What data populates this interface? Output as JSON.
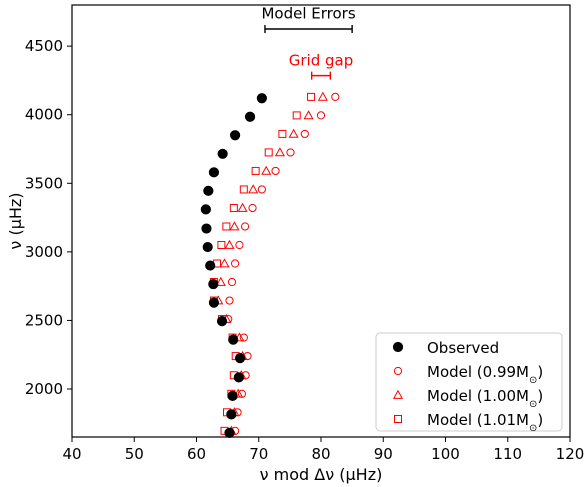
{
  "chart_data": {
    "type": "scatter",
    "xlabel": "ν mod Δν (μHz)",
    "ylabel": "ν (μHz)",
    "xlim": [
      40,
      120
    ],
    "ylim": [
      1650,
      4800
    ],
    "xticks": [
      40,
      50,
      60,
      70,
      80,
      90,
      100,
      110,
      120
    ],
    "yticks": [
      2000,
      2500,
      3000,
      3500,
      4000,
      4500
    ],
    "ytick_labels": [
      "2000",
      "2500",
      "3000",
      "3500",
      "4000",
      "4500"
    ],
    "xtick_labels": [
      "40",
      "50",
      "60",
      "70",
      "80",
      "90",
      "100",
      "110",
      "120"
    ],
    "grid": false,
    "legend_position": "bottom-right",
    "series": [
      {
        "name": "Observed",
        "marker": "filled-circle",
        "color": "#000000",
        "points": [
          [
            70.5,
            4120
          ],
          [
            68.6,
            3985
          ],
          [
            66.2,
            3850
          ],
          [
            64.2,
            3715
          ],
          [
            62.8,
            3580
          ],
          [
            61.9,
            3445
          ],
          [
            61.5,
            3310
          ],
          [
            61.6,
            3170
          ],
          [
            61.8,
            3035
          ],
          [
            62.2,
            2900
          ],
          [
            62.7,
            2765
          ],
          [
            62.8,
            2630
          ],
          [
            64.1,
            2495
          ],
          [
            65.9,
            2360
          ],
          [
            67.0,
            2225
          ],
          [
            66.8,
            2085
          ],
          [
            65.8,
            1950
          ],
          [
            65.6,
            1815
          ],
          [
            65.3,
            1680
          ]
        ]
      },
      {
        "name": "Model (0.99M",
        "marker": "open-circle",
        "color": "#ff0000",
        "points": [
          [
            82.3,
            4130
          ],
          [
            80.0,
            3995
          ],
          [
            77.4,
            3860
          ],
          [
            75.1,
            3725
          ],
          [
            72.7,
            3590
          ],
          [
            70.5,
            3455
          ],
          [
            69.0,
            3320
          ],
          [
            67.8,
            3185
          ],
          [
            66.9,
            3050
          ],
          [
            66.2,
            2915
          ],
          [
            65.7,
            2780
          ],
          [
            65.3,
            2645
          ],
          [
            65.1,
            2510
          ],
          [
            67.6,
            2375
          ],
          [
            68.2,
            2240
          ],
          [
            67.9,
            2100
          ],
          [
            67.3,
            1965
          ],
          [
            66.6,
            1830
          ],
          [
            66.2,
            1695
          ]
        ]
      },
      {
        "name": "Model (1.00M",
        "marker": "open-triangle",
        "color": "#ff0000",
        "points": [
          [
            80.3,
            4130
          ],
          [
            78.0,
            3995
          ],
          [
            75.6,
            3860
          ],
          [
            73.4,
            3725
          ],
          [
            71.2,
            3590
          ],
          [
            69.1,
            3455
          ],
          [
            67.4,
            3320
          ],
          [
            66.1,
            3185
          ],
          [
            65.3,
            3050
          ],
          [
            64.5,
            2915
          ],
          [
            63.9,
            2780
          ],
          [
            63.5,
            2645
          ],
          [
            64.8,
            2510
          ],
          [
            66.9,
            2375
          ],
          [
            67.4,
            2240
          ],
          [
            67.2,
            2100
          ],
          [
            66.7,
            1965
          ],
          [
            66.1,
            1830
          ],
          [
            65.6,
            1695
          ]
        ]
      },
      {
        "name": "Model (1.01M",
        "marker": "open-square",
        "color": "#ff0000",
        "points": [
          [
            78.4,
            4130
          ],
          [
            76.1,
            3995
          ],
          [
            73.8,
            3860
          ],
          [
            71.6,
            3725
          ],
          [
            69.5,
            3590
          ],
          [
            67.6,
            3455
          ],
          [
            66.0,
            3320
          ],
          [
            64.8,
            3185
          ],
          [
            64.0,
            3050
          ],
          [
            63.3,
            2915
          ],
          [
            62.8,
            2780
          ],
          [
            62.8,
            2645
          ],
          [
            64.1,
            2510
          ],
          [
            65.8,
            2375
          ],
          [
            66.3,
            2240
          ],
          [
            66.0,
            2100
          ],
          [
            65.6,
            1965
          ],
          [
            64.9,
            1830
          ],
          [
            64.5,
            1695
          ]
        ]
      }
    ],
    "legend_sub": "⊙",
    "legend_tail": ")",
    "annotations": [
      {
        "text": "Model Errors",
        "color": "#000000",
        "bar_x": [
          71,
          85
        ],
        "y": 4625,
        "text_y": 4700
      },
      {
        "text": "Grid gap",
        "color": "#ff0000",
        "bar_x": [
          78.5,
          81.5
        ],
        "y": 4285,
        "text_y": 4360
      }
    ]
  }
}
